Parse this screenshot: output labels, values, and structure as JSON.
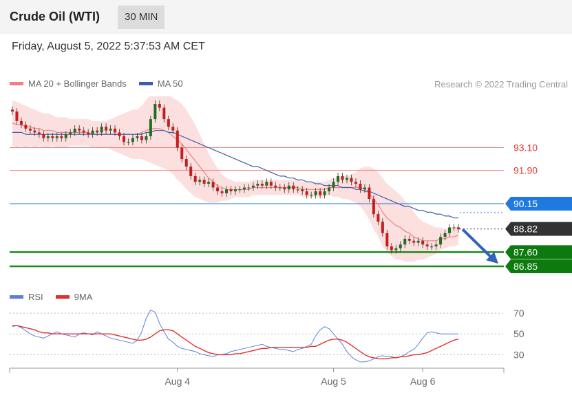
{
  "header": {
    "title": "Crude Oil (WTI)",
    "timeframe": "30 MIN"
  },
  "datetime": "Friday, August 5, 2022 5:37:53 AM CET",
  "legend": {
    "ma20_label": "MA 20 + Bollinger Bands",
    "ma20_color": "#f08080",
    "ma50_label": "MA 50",
    "ma50_color": "#3a5fa8"
  },
  "credit": "Research © 2022 Trading Central",
  "chart_data": [
    {
      "type": "line",
      "title": "",
      "description_of_series": "price candles with MA20 + Bollinger Bands and MA50",
      "y_range": [
        86.2,
        95.8
      ],
      "levels": [
        {
          "label": "93.10",
          "value": 93.1,
          "color": "#f08080",
          "style": "thin"
        },
        {
          "label": "91.90",
          "value": 91.9,
          "color": "#f08080",
          "style": "thin"
        },
        {
          "label": "90.15",
          "value": 90.15,
          "color": "#1f7ae0",
          "style": "thin",
          "badge": true,
          "badge_color": "#1f7ae0"
        },
        {
          "label": "88.82",
          "value": 88.82,
          "color": "#555555",
          "style": "dotted",
          "badge": true,
          "badge_color": "#333333"
        },
        {
          "label": "87.60",
          "value": 87.6,
          "color": "#1a8a1a",
          "style": "thick",
          "badge": true,
          "badge_color": "#0c7a0c"
        },
        {
          "label": "86.85",
          "value": 86.85,
          "color": "#1a8a1a",
          "style": "thick",
          "badge": true,
          "badge_color": "#0c7a0c"
        }
      ],
      "close": [
        95.0,
        94.5,
        94.3,
        94.1,
        94.0,
        93.9,
        93.8,
        93.6,
        93.7,
        93.6,
        93.7,
        93.6,
        93.8,
        93.9,
        94.1,
        94.0,
        93.9,
        93.8,
        94.0,
        93.9,
        94.2,
        94.0,
        94.1,
        93.9,
        93.7,
        93.4,
        93.4,
        93.6,
        93.7,
        93.5,
        93.7,
        94.6,
        95.4,
        95.2,
        94.6,
        94.2,
        94.0,
        93.1,
        92.5,
        92.1,
        91.6,
        91.3,
        91.4,
        91.2,
        91.3,
        91.0,
        90.8,
        90.7,
        90.9,
        90.8,
        90.9,
        90.9,
        91.0,
        91.0,
        91.1,
        91.2,
        91.1,
        91.3,
        91.1,
        91.0,
        91.0,
        90.9,
        91.1,
        90.9,
        90.9,
        90.8,
        90.6,
        90.6,
        90.8,
        90.6,
        90.8,
        91.0,
        91.3,
        91.6,
        91.4,
        91.5,
        91.3,
        91.2,
        90.9,
        91.0,
        90.4,
        89.6,
        89.2,
        88.6,
        87.9,
        87.7,
        87.8,
        88.0,
        88.3,
        88.2,
        88.1,
        88.2,
        88.0,
        87.9,
        87.9,
        88.0,
        88.4,
        88.6,
        88.9,
        88.9,
        88.8
      ],
      "ma20": [
        94.4,
        94.3,
        94.3,
        94.2,
        94.2,
        94.1,
        94.1,
        94.0,
        94.0,
        94.0,
        93.9,
        93.9,
        93.9,
        93.9,
        93.9,
        93.9,
        93.9,
        93.9,
        93.8,
        93.8,
        93.8,
        93.8,
        93.8,
        93.8,
        93.8,
        93.8,
        93.8,
        93.8,
        93.8,
        93.9,
        94.0,
        94.1,
        94.1,
        94.1,
        94.0,
        93.9,
        93.7,
        93.5,
        93.3,
        93.0,
        92.7,
        92.4,
        92.1,
        91.8,
        91.5,
        91.3,
        91.1,
        91.0,
        90.9,
        90.9,
        90.9,
        90.9,
        90.9,
        90.9,
        91.0,
        91.0,
        91.0,
        91.0,
        91.0,
        91.0,
        91.0,
        91.0,
        91.0,
        91.0,
        91.0,
        90.9,
        90.9,
        90.9,
        90.9,
        90.9,
        90.9,
        91.0,
        91.0,
        91.0,
        91.0,
        91.0,
        91.0,
        91.0,
        91.0,
        90.9,
        90.7,
        90.4,
        90.1,
        89.7,
        89.4,
        89.2,
        89.0,
        88.9,
        88.7,
        88.6,
        88.4,
        88.3,
        88.2,
        88.2,
        88.2,
        88.2,
        88.3,
        88.3,
        88.4,
        88.4,
        88.5
      ],
      "ma50": [
        93.9,
        93.9,
        93.9,
        93.8,
        93.8,
        93.8,
        93.8,
        93.8,
        93.8,
        93.8,
        93.8,
        93.8,
        93.8,
        93.8,
        93.8,
        93.8,
        93.8,
        93.8,
        93.8,
        93.8,
        93.8,
        93.8,
        93.8,
        93.8,
        93.8,
        93.8,
        93.8,
        93.8,
        93.8,
        93.8,
        93.9,
        93.9,
        94.0,
        94.0,
        94.0,
        93.9,
        93.9,
        93.8,
        93.7,
        93.6,
        93.5,
        93.4,
        93.3,
        93.2,
        93.1,
        93.0,
        92.9,
        92.8,
        92.7,
        92.6,
        92.5,
        92.4,
        92.3,
        92.2,
        92.1,
        92.1,
        92.0,
        91.9,
        91.8,
        91.7,
        91.6,
        91.6,
        91.5,
        91.5,
        91.4,
        91.4,
        91.3,
        91.3,
        91.2,
        91.2,
        91.1,
        91.1,
        91.1,
        91.1,
        91.0,
        91.0,
        91.0,
        90.9,
        90.9,
        90.8,
        90.8,
        90.7,
        90.6,
        90.5,
        90.4,
        90.3,
        90.2,
        90.1,
        90.0,
        90.0,
        89.9,
        89.8,
        89.8,
        89.7,
        89.7,
        89.6,
        89.6,
        89.5,
        89.5,
        89.4,
        89.4
      ],
      "bb_width": [
        1.2,
        1.2,
        1.1,
        1.1,
        1.0,
        1.0,
        0.9,
        0.9,
        0.9,
        0.8,
        0.8,
        0.8,
        0.8,
        0.7,
        0.7,
        0.7,
        0.7,
        0.7,
        0.7,
        0.7,
        0.7,
        0.7,
        0.8,
        0.9,
        1.0,
        1.1,
        1.2,
        1.3,
        1.3,
        1.4,
        1.6,
        1.8,
        1.9,
        2.0,
        2.0,
        2.0,
        2.0,
        2.1,
        2.1,
        2.1,
        2.0,
        1.9,
        1.7,
        1.5,
        1.3,
        1.1,
        0.9,
        0.7,
        0.6,
        0.5,
        0.4,
        0.4,
        0.4,
        0.4,
        0.4,
        0.4,
        0.4,
        0.4,
        0.4,
        0.4,
        0.4,
        0.4,
        0.4,
        0.4,
        0.4,
        0.4,
        0.4,
        0.4,
        0.4,
        0.4,
        0.4,
        0.4,
        0.5,
        0.5,
        0.6,
        0.6,
        0.7,
        0.8,
        1.0,
        1.2,
        1.4,
        1.6,
        1.7,
        1.8,
        1.8,
        1.8,
        1.8,
        1.7,
        1.6,
        1.5,
        1.3,
        1.1,
        1.0,
        0.9,
        0.8,
        0.7,
        0.6,
        0.5,
        0.5,
        0.5,
        0.5
      ],
      "forecast_arrow": {
        "from": 88.8,
        "to": 87.1
      }
    },
    {
      "type": "line",
      "legend": [
        {
          "name": "RSI",
          "color": "#5b7fd8"
        },
        {
          "name": "9MA",
          "color": "#e03030"
        }
      ],
      "y_range": [
        15,
        80
      ],
      "y_ticks": [
        "70",
        "50",
        "30"
      ],
      "y_tick_values": [
        70,
        50,
        30
      ],
      "x_ticks": [
        "Aug 4",
        "Aug 5",
        "Aug 6"
      ],
      "x_tick_index": [
        37,
        72,
        92
      ],
      "series": [
        {
          "name": "RSI",
          "values": [
            57,
            58,
            56,
            53,
            50,
            48,
            47,
            46,
            48,
            50,
            52,
            50,
            49,
            48,
            47,
            50,
            51,
            50,
            49,
            52,
            50,
            48,
            46,
            45,
            44,
            43,
            42,
            41,
            44,
            52,
            65,
            73,
            71,
            60,
            52,
            45,
            42,
            38,
            36,
            35,
            34,
            33,
            31,
            30,
            29,
            28,
            30,
            30,
            31,
            33,
            34,
            35,
            36,
            37,
            38,
            39,
            40,
            38,
            37,
            36,
            35,
            35,
            34,
            33,
            35,
            36,
            38,
            40,
            48,
            54,
            57,
            55,
            50,
            45,
            40,
            33,
            28,
            25,
            23,
            23,
            24,
            26,
            28,
            29,
            28,
            28,
            27,
            28,
            30,
            33,
            35,
            40,
            46,
            51,
            52,
            51,
            50,
            50,
            50,
            50,
            50
          ]
        },
        {
          "name": "9MA",
          "values": [
            58,
            58,
            57,
            56,
            55,
            54,
            52,
            51,
            51,
            50,
            50,
            50,
            50,
            50,
            50,
            50,
            50,
            50,
            50,
            50,
            50,
            50,
            50,
            49,
            48,
            47,
            46,
            45,
            44,
            44,
            45,
            47,
            50,
            53,
            54,
            54,
            53,
            50,
            47,
            44,
            41,
            38,
            36,
            34,
            32,
            31,
            30,
            30,
            30,
            30,
            31,
            31,
            32,
            33,
            34,
            35,
            36,
            36,
            37,
            37,
            37,
            37,
            37,
            37,
            37,
            37,
            37,
            38,
            38,
            40,
            42,
            44,
            45,
            45,
            44,
            42,
            39,
            36,
            33,
            30,
            28,
            27,
            26,
            26,
            26,
            27,
            27,
            28,
            28,
            29,
            30,
            30,
            31,
            32,
            34,
            36,
            38,
            40,
            42,
            44,
            45
          ]
        }
      ]
    }
  ]
}
